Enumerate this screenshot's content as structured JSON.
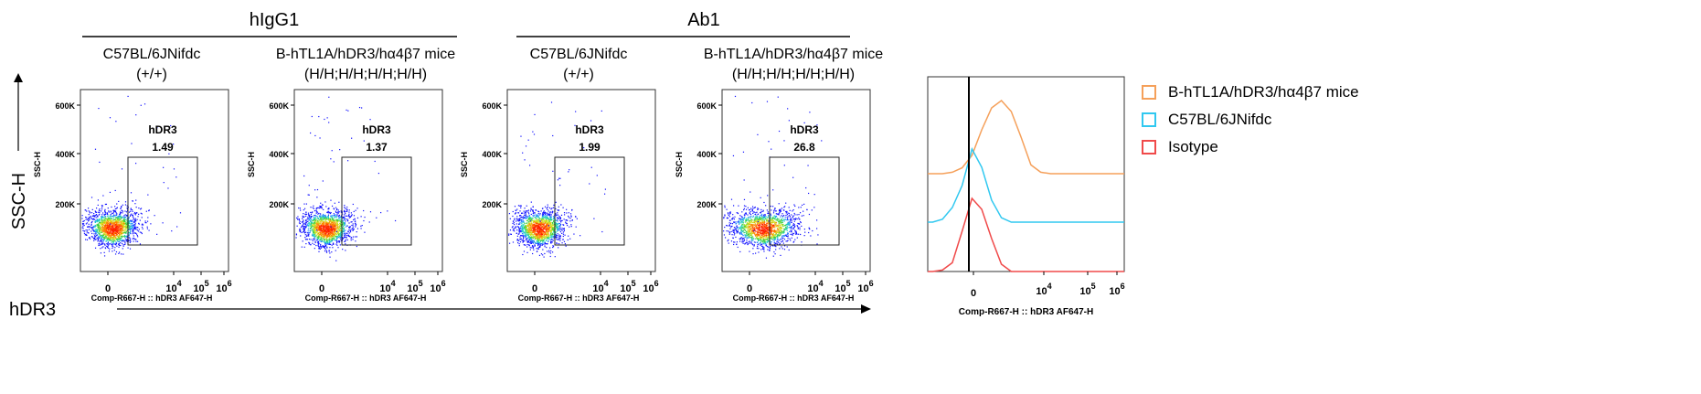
{
  "groups": [
    {
      "label": "hIgG1"
    },
    {
      "label": "Ab1"
    }
  ],
  "y_axis_title": "SSC-H",
  "x_axis_title": "hDR3",
  "chart_data": [
    {
      "type": "scatter",
      "group": "hIgG1",
      "title_line1": "C57BL/6JNifdc",
      "title_line2": "(+/+)",
      "ylabel": "SSC-H",
      "xlabel": "Comp-R667-H :: hDR3 AF647-H",
      "yticks": [
        "600K",
        "400K",
        "200K"
      ],
      "xticks": [
        "0",
        "10^4",
        "10^5",
        "10^6"
      ],
      "gate_name": "hDR3",
      "gate_value": "1.49",
      "scale": "biexponential"
    },
    {
      "type": "scatter",
      "group": "hIgG1",
      "title_line1": "B-hTL1A/hDR3/hα4β7 mice",
      "title_line2": "(H/H;H/H;H/H;H/H)",
      "ylabel": "SSC-H",
      "xlabel": "Comp-R667-H :: hDR3 AF647-H",
      "yticks": [
        "600K",
        "400K",
        "200K"
      ],
      "xticks": [
        "0",
        "10^4",
        "10^5",
        "10^6"
      ],
      "gate_name": "hDR3",
      "gate_value": "1.37",
      "scale": "biexponential"
    },
    {
      "type": "scatter",
      "group": "Ab1",
      "title_line1": "C57BL/6JNifdc",
      "title_line2": "(+/+)",
      "ylabel": "SSC-H",
      "xlabel": "Comp-R667-H :: hDR3 AF647-H",
      "yticks": [
        "600K",
        "400K",
        "200K"
      ],
      "xticks": [
        "0",
        "10^4",
        "10^5",
        "10^6"
      ],
      "gate_name": "hDR3",
      "gate_value": "1.99",
      "scale": "biexponential"
    },
    {
      "type": "scatter",
      "group": "Ab1",
      "title_line1": "B-hTL1A/hDR3/hα4β7 mice",
      "title_line2": "(H/H;H/H;H/H;H/H)",
      "ylabel": "SSC-H",
      "xlabel": "Comp-R667-H :: hDR3 AF647-H",
      "yticks": [
        "600K",
        "400K",
        "200K"
      ],
      "xticks": [
        "0",
        "10^4",
        "10^5",
        "10^6"
      ],
      "gate_name": "hDR3",
      "gate_value": "26.8",
      "scale": "biexponential"
    },
    {
      "type": "line",
      "subtype": "histogram-offset",
      "xlabel": "Comp-R667-H :: hDR3 AF647-H",
      "xticks": [
        "0",
        "10^4",
        "10^5",
        "10^6"
      ],
      "legend_position": "right",
      "series": [
        {
          "name": "B-hTL1A/hDR3/hα4β7 mice",
          "color": "#f5a05a",
          "values": [
            0,
            0,
            2,
            8,
            25,
            60,
            90,
            100,
            85,
            50,
            12,
            2,
            0,
            0,
            0,
            0,
            0,
            0,
            0,
            0
          ]
        },
        {
          "name": "C57BL/6JNifdc",
          "color": "#30c8f0",
          "values": [
            0,
            4,
            20,
            50,
            100,
            75,
            30,
            6,
            0,
            0,
            0,
            0,
            0,
            0,
            0,
            0,
            0,
            0,
            0,
            0
          ]
        },
        {
          "name": "Isotype",
          "color": "#f04a4a",
          "values": [
            0,
            2,
            12,
            55,
            100,
            85,
            45,
            10,
            0,
            0,
            0,
            0,
            0,
            0,
            0,
            0,
            0,
            0,
            0,
            0
          ]
        }
      ]
    }
  ]
}
